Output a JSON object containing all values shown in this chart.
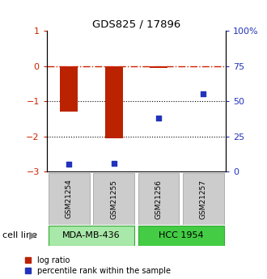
{
  "title": "GDS825 / 17896",
  "samples": [
    "GSM21254",
    "GSM21255",
    "GSM21256",
    "GSM21257"
  ],
  "log_ratio": [
    -1.3,
    -2.05,
    -0.05,
    null
  ],
  "percentile_rank": [
    5,
    6,
    38,
    55
  ],
  "cell_lines": [
    {
      "label": "MDA-MB-436",
      "samples": [
        0,
        1
      ],
      "color": "#a8e8a8"
    },
    {
      "label": "HCC 1954",
      "samples": [
        2,
        3
      ],
      "color": "#44cc44"
    }
  ],
  "left_ylim": [
    -3,
    1
  ],
  "right_ylim": [
    0,
    100
  ],
  "left_yticks": [
    -3,
    -2,
    -1,
    0,
    1
  ],
  "right_yticks": [
    0,
    25,
    50,
    75,
    100
  ],
  "right_yticklabels": [
    "0",
    "25",
    "50",
    "75",
    "100%"
  ],
  "hline_y": 0,
  "dotted_lines": [
    -1,
    -2
  ],
  "bar_color": "#bb2200",
  "scatter_color": "#2233bb",
  "bar_width": 0.4,
  "legend_red_label": "log ratio",
  "legend_blue_label": "percentile rank within the sample",
  "cell_line_label": "cell line",
  "sample_box_color": "#cccccc",
  "sample_box_edge": "#999999"
}
